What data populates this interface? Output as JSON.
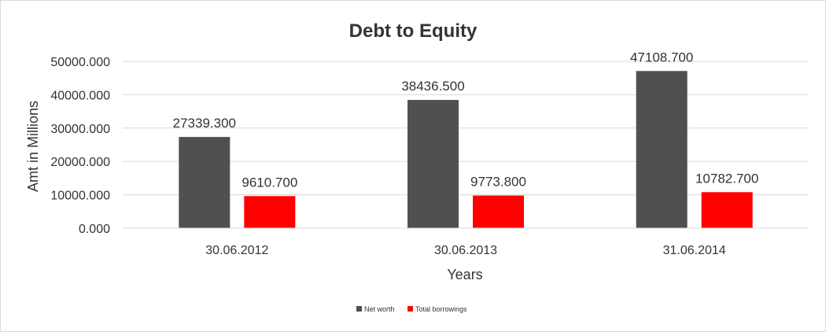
{
  "chart_data": {
    "type": "bar",
    "title": "Debt to Equity",
    "xlabel": "Years",
    "ylabel": "Amt in Millions",
    "categories": [
      "30.06.2012",
      "30.06.2013",
      "31.06.2014"
    ],
    "yticks": [
      "0.000",
      "10000.000",
      "20000.000",
      "30000.000",
      "40000.000",
      "50000.000"
    ],
    "ylim": [
      0,
      50000
    ],
    "grid": true,
    "legend_position": "bottom",
    "series": [
      {
        "name": "Net worth",
        "color": "#505050",
        "values": [
          27339.3,
          38436.5,
          47108.7
        ],
        "labels": [
          "27339.300",
          "38436.500",
          "47108.700"
        ]
      },
      {
        "name": "Total borrowings",
        "color": "#ff0000",
        "values": [
          9610.7,
          9773.8,
          10782.7
        ],
        "labels": [
          "9610.700",
          "9773.800",
          "10782.700"
        ]
      }
    ]
  }
}
